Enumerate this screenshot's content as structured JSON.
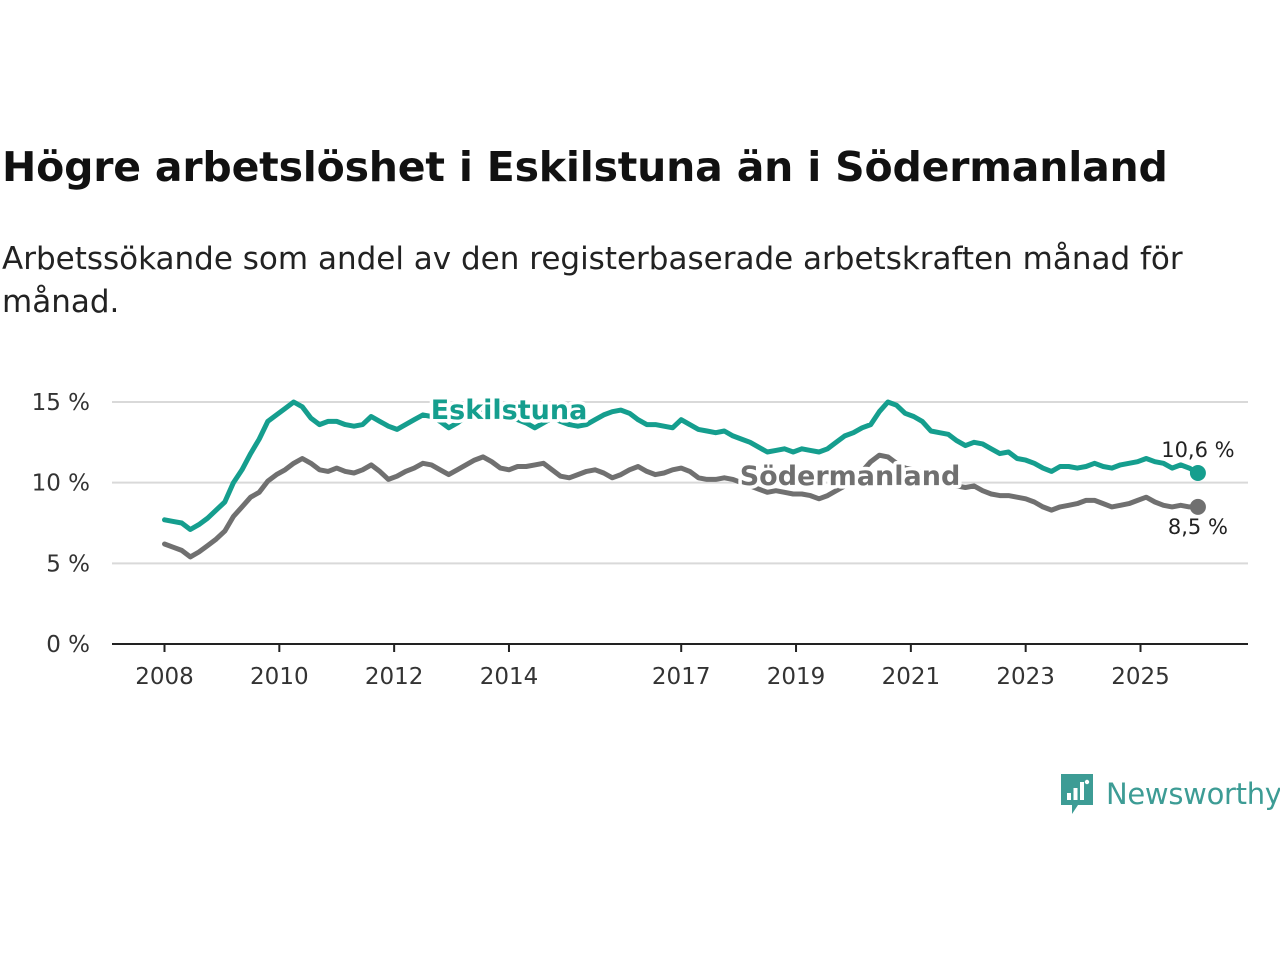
{
  "header": {
    "title": "Högre arbetslöshet i Eskilstuna än i Södermanland",
    "subtitle": "Arbetssökande som andel av den registerbaserade arbetskraften månad för månad."
  },
  "brand": {
    "name": "Newsworthy",
    "icon": "newsworthy-logo-icon",
    "color": "#3d9c95"
  },
  "chart_data": {
    "type": "line",
    "title": "Högre arbetslöshet i Eskilstuna än i Södermanland",
    "xlabel": "",
    "ylabel": "",
    "xlim": [
      2008,
      2026.15
    ],
    "ylim": [
      0,
      15
    ],
    "yticks": [
      0,
      5,
      10,
      15
    ],
    "ytick_labels": [
      "0 %",
      "5 %",
      "10 %",
      "15 %"
    ],
    "xticks": [
      2008,
      2010,
      2012,
      2014,
      2017,
      2019,
      2021,
      2023,
      2025
    ],
    "xtick_labels": [
      "2008",
      "2010",
      "2012",
      "2014",
      "2017",
      "2019",
      "2021",
      "2023",
      "2025"
    ],
    "grid": true,
    "series": [
      {
        "name": "Eskilstuna",
        "color": "#159e8e",
        "end_label": "10,6 %",
        "points": [
          [
            2008.0,
            7.7
          ],
          [
            2008.15,
            7.6
          ],
          [
            2008.3,
            7.5
          ],
          [
            2008.45,
            7.1
          ],
          [
            2008.6,
            7.4
          ],
          [
            2008.75,
            7.8
          ],
          [
            2008.9,
            8.3
          ],
          [
            2009.05,
            8.8
          ],
          [
            2009.2,
            10.0
          ],
          [
            2009.35,
            10.8
          ],
          [
            2009.5,
            11.8
          ],
          [
            2009.65,
            12.7
          ],
          [
            2009.8,
            13.8
          ],
          [
            2009.95,
            14.2
          ],
          [
            2010.1,
            14.6
          ],
          [
            2010.25,
            15.0
          ],
          [
            2010.4,
            14.7
          ],
          [
            2010.55,
            14.0
          ],
          [
            2010.7,
            13.6
          ],
          [
            2010.85,
            13.8
          ],
          [
            2011.0,
            13.8
          ],
          [
            2011.15,
            13.6
          ],
          [
            2011.3,
            13.5
          ],
          [
            2011.45,
            13.6
          ],
          [
            2011.6,
            14.1
          ],
          [
            2011.75,
            13.8
          ],
          [
            2011.9,
            13.5
          ],
          [
            2012.05,
            13.3
          ],
          [
            2012.2,
            13.6
          ],
          [
            2012.35,
            13.9
          ],
          [
            2012.5,
            14.2
          ],
          [
            2012.65,
            14.1
          ],
          [
            2012.8,
            13.8
          ],
          [
            2012.95,
            13.4
          ],
          [
            2013.1,
            13.7
          ],
          [
            2013.25,
            14.1
          ],
          [
            2013.4,
            14.4
          ],
          [
            2013.55,
            14.6
          ],
          [
            2013.7,
            14.5
          ],
          [
            2013.85,
            14.2
          ],
          [
            2014.0,
            14.0
          ],
          [
            2014.15,
            13.9
          ],
          [
            2014.3,
            13.7
          ],
          [
            2014.45,
            13.4
          ],
          [
            2014.6,
            13.7
          ],
          [
            2014.75,
            14.0
          ],
          [
            2014.9,
            13.8
          ],
          [
            2015.05,
            13.6
          ],
          [
            2015.2,
            13.5
          ],
          [
            2015.35,
            13.6
          ],
          [
            2015.5,
            13.9
          ],
          [
            2015.65,
            14.2
          ],
          [
            2015.8,
            14.4
          ],
          [
            2015.95,
            14.5
          ],
          [
            2016.1,
            14.3
          ],
          [
            2016.25,
            13.9
          ],
          [
            2016.4,
            13.6
          ],
          [
            2016.55,
            13.6
          ],
          [
            2016.7,
            13.5
          ],
          [
            2016.85,
            13.4
          ],
          [
            2017.0,
            13.9
          ],
          [
            2017.15,
            13.6
          ],
          [
            2017.3,
            13.3
          ],
          [
            2017.45,
            13.2
          ],
          [
            2017.6,
            13.1
          ],
          [
            2017.75,
            13.2
          ],
          [
            2017.9,
            12.9
          ],
          [
            2018.05,
            12.7
          ],
          [
            2018.2,
            12.5
          ],
          [
            2018.35,
            12.2
          ],
          [
            2018.5,
            11.9
          ],
          [
            2018.65,
            12.0
          ],
          [
            2018.8,
            12.1
          ],
          [
            2018.95,
            11.9
          ],
          [
            2019.1,
            12.1
          ],
          [
            2019.25,
            12.0
          ],
          [
            2019.4,
            11.9
          ],
          [
            2019.55,
            12.1
          ],
          [
            2019.7,
            12.5
          ],
          [
            2019.85,
            12.9
          ],
          [
            2020.0,
            13.1
          ],
          [
            2020.15,
            13.4
          ],
          [
            2020.3,
            13.6
          ],
          [
            2020.45,
            14.4
          ],
          [
            2020.6,
            15.0
          ],
          [
            2020.75,
            14.8
          ],
          [
            2020.9,
            14.3
          ],
          [
            2021.05,
            14.1
          ],
          [
            2021.2,
            13.8
          ],
          [
            2021.35,
            13.2
          ],
          [
            2021.5,
            13.1
          ],
          [
            2021.65,
            13.0
          ],
          [
            2021.8,
            12.6
          ],
          [
            2021.95,
            12.3
          ],
          [
            2022.1,
            12.5
          ],
          [
            2022.25,
            12.4
          ],
          [
            2022.4,
            12.1
          ],
          [
            2022.55,
            11.8
          ],
          [
            2022.7,
            11.9
          ],
          [
            2022.85,
            11.5
          ],
          [
            2023.0,
            11.4
          ],
          [
            2023.15,
            11.2
          ],
          [
            2023.3,
            10.9
          ],
          [
            2023.45,
            10.7
          ],
          [
            2023.6,
            11.0
          ],
          [
            2023.75,
            11.0
          ],
          [
            2023.9,
            10.9
          ],
          [
            2024.05,
            11.0
          ],
          [
            2024.2,
            11.2
          ],
          [
            2024.35,
            11.0
          ],
          [
            2024.5,
            10.9
          ],
          [
            2024.65,
            11.1
          ],
          [
            2024.8,
            11.2
          ],
          [
            2024.95,
            11.3
          ],
          [
            2025.1,
            11.5
          ],
          [
            2025.25,
            11.3
          ],
          [
            2025.4,
            11.2
          ],
          [
            2025.55,
            10.9
          ],
          [
            2025.7,
            11.1
          ],
          [
            2025.85,
            10.9
          ],
          [
            2026.0,
            10.6
          ]
        ]
      },
      {
        "name": "Södermanland",
        "color": "#707070",
        "end_label": "8,5 %",
        "points": [
          [
            2008.0,
            6.2
          ],
          [
            2008.15,
            6.0
          ],
          [
            2008.3,
            5.8
          ],
          [
            2008.45,
            5.4
          ],
          [
            2008.6,
            5.7
          ],
          [
            2008.75,
            6.1
          ],
          [
            2008.9,
            6.5
          ],
          [
            2009.05,
            7.0
          ],
          [
            2009.2,
            7.9
          ],
          [
            2009.35,
            8.5
          ],
          [
            2009.5,
            9.1
          ],
          [
            2009.65,
            9.4
          ],
          [
            2009.8,
            10.1
          ],
          [
            2009.95,
            10.5
          ],
          [
            2010.1,
            10.8
          ],
          [
            2010.25,
            11.2
          ],
          [
            2010.4,
            11.5
          ],
          [
            2010.55,
            11.2
          ],
          [
            2010.7,
            10.8
          ],
          [
            2010.85,
            10.7
          ],
          [
            2011.0,
            10.9
          ],
          [
            2011.15,
            10.7
          ],
          [
            2011.3,
            10.6
          ],
          [
            2011.45,
            10.8
          ],
          [
            2011.6,
            11.1
          ],
          [
            2011.75,
            10.7
          ],
          [
            2011.9,
            10.2
          ],
          [
            2012.05,
            10.4
          ],
          [
            2012.2,
            10.7
          ],
          [
            2012.35,
            10.9
          ],
          [
            2012.5,
            11.2
          ],
          [
            2012.65,
            11.1
          ],
          [
            2012.8,
            10.8
          ],
          [
            2012.95,
            10.5
          ],
          [
            2013.1,
            10.8
          ],
          [
            2013.25,
            11.1
          ],
          [
            2013.4,
            11.4
          ],
          [
            2013.55,
            11.6
          ],
          [
            2013.7,
            11.3
          ],
          [
            2013.85,
            10.9
          ],
          [
            2014.0,
            10.8
          ],
          [
            2014.15,
            11.0
          ],
          [
            2014.3,
            11.0
          ],
          [
            2014.45,
            11.1
          ],
          [
            2014.6,
            11.2
          ],
          [
            2014.75,
            10.8
          ],
          [
            2014.9,
            10.4
          ],
          [
            2015.05,
            10.3
          ],
          [
            2015.2,
            10.5
          ],
          [
            2015.35,
            10.7
          ],
          [
            2015.5,
            10.8
          ],
          [
            2015.65,
            10.6
          ],
          [
            2015.8,
            10.3
          ],
          [
            2015.95,
            10.5
          ],
          [
            2016.1,
            10.8
          ],
          [
            2016.25,
            11.0
          ],
          [
            2016.4,
            10.7
          ],
          [
            2016.55,
            10.5
          ],
          [
            2016.7,
            10.6
          ],
          [
            2016.85,
            10.8
          ],
          [
            2017.0,
            10.9
          ],
          [
            2017.15,
            10.7
          ],
          [
            2017.3,
            10.3
          ],
          [
            2017.45,
            10.2
          ],
          [
            2017.6,
            10.2
          ],
          [
            2017.75,
            10.3
          ],
          [
            2017.9,
            10.2
          ],
          [
            2018.05,
            10.0
          ],
          [
            2018.2,
            9.8
          ],
          [
            2018.35,
            9.6
          ],
          [
            2018.5,
            9.4
          ],
          [
            2018.65,
            9.5
          ],
          [
            2018.8,
            9.4
          ],
          [
            2018.95,
            9.3
          ],
          [
            2019.1,
            9.3
          ],
          [
            2019.25,
            9.2
          ],
          [
            2019.4,
            9.0
          ],
          [
            2019.55,
            9.2
          ],
          [
            2019.7,
            9.5
          ],
          [
            2019.85,
            9.8
          ],
          [
            2020.0,
            10.1
          ],
          [
            2020.15,
            10.7
          ],
          [
            2020.3,
            11.3
          ],
          [
            2020.45,
            11.7
          ],
          [
            2020.6,
            11.6
          ],
          [
            2020.75,
            11.2
          ],
          [
            2020.9,
            10.9
          ],
          [
            2021.05,
            10.8
          ],
          [
            2021.2,
            10.6
          ],
          [
            2021.35,
            10.3
          ],
          [
            2021.5,
            10.1
          ],
          [
            2021.65,
            10.0
          ],
          [
            2021.8,
            9.8
          ],
          [
            2021.95,
            9.7
          ],
          [
            2022.1,
            9.8
          ],
          [
            2022.25,
            9.5
          ],
          [
            2022.4,
            9.3
          ],
          [
            2022.55,
            9.2
          ],
          [
            2022.7,
            9.2
          ],
          [
            2022.85,
            9.1
          ],
          [
            2023.0,
            9.0
          ],
          [
            2023.15,
            8.8
          ],
          [
            2023.3,
            8.5
          ],
          [
            2023.45,
            8.3
          ],
          [
            2023.6,
            8.5
          ],
          [
            2023.75,
            8.6
          ],
          [
            2023.9,
            8.7
          ],
          [
            2024.05,
            8.9
          ],
          [
            2024.2,
            8.9
          ],
          [
            2024.35,
            8.7
          ],
          [
            2024.5,
            8.5
          ],
          [
            2024.65,
            8.6
          ],
          [
            2024.8,
            8.7
          ],
          [
            2024.95,
            8.9
          ],
          [
            2025.1,
            9.1
          ],
          [
            2025.25,
            8.8
          ],
          [
            2025.4,
            8.6
          ],
          [
            2025.55,
            8.5
          ],
          [
            2025.7,
            8.6
          ],
          [
            2025.85,
            8.5
          ],
          [
            2026.0,
            8.5
          ]
        ]
      }
    ]
  }
}
